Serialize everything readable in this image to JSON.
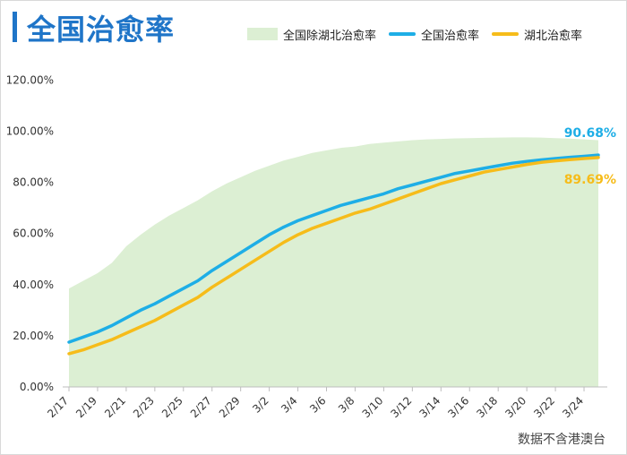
{
  "chart_data": {
    "type": "line",
    "title": "全国治愈率",
    "source": "数据不含港澳台",
    "categories": [
      "2/17",
      "2/18",
      "2/19",
      "2/20",
      "2/21",
      "2/22",
      "2/23",
      "2/24",
      "2/25",
      "2/26",
      "2/27",
      "2/28",
      "2/29",
      "3/1",
      "3/2",
      "3/3",
      "3/4",
      "3/5",
      "3/6",
      "3/7",
      "3/8",
      "3/9",
      "3/10",
      "3/11",
      "3/12",
      "3/13",
      "3/14",
      "3/15",
      "3/16",
      "3/17",
      "3/18",
      "3/19",
      "3/20",
      "3/21",
      "3/22",
      "3/23",
      "3/24",
      "3/25"
    ],
    "tick_labels": [
      "2/17",
      "2/19",
      "2/21",
      "2/23",
      "2/25",
      "2/27",
      "2/29",
      "3/2",
      "3/4",
      "3/6",
      "3/8",
      "3/10",
      "3/12",
      "3/14",
      "3/16",
      "3/18",
      "3/20",
      "3/22",
      "3/24"
    ],
    "y_ticks": [
      "0.00%",
      "20.00%",
      "40.00%",
      "60.00%",
      "80.00%",
      "100.00%",
      "120.00%"
    ],
    "ylim": [
      0,
      120
    ],
    "series": [
      {
        "name": "全国除湖北治愈率",
        "render": "area",
        "color": "#dcefd3",
        "values": [
          38.5,
          41.5,
          44.5,
          48.5,
          55.0,
          59.5,
          63.5,
          67.0,
          70.0,
          73.0,
          76.5,
          79.5,
          82.0,
          84.5,
          86.5,
          88.5,
          90.0,
          91.5,
          92.5,
          93.5,
          94.0,
          95.0,
          95.5,
          96.0,
          96.5,
          96.8,
          97.0,
          97.2,
          97.3,
          97.4,
          97.5,
          97.6,
          97.6,
          97.5,
          97.3,
          97.1,
          96.8,
          96.5
        ]
      },
      {
        "name": "全国治愈率",
        "render": "line",
        "color": "#1eaee6",
        "values": [
          17.5,
          19.5,
          21.5,
          24.0,
          27.0,
          30.0,
          32.5,
          35.5,
          38.5,
          41.5,
          45.5,
          49.0,
          52.5,
          56.0,
          59.5,
          62.5,
          65.0,
          67.0,
          69.0,
          71.0,
          72.5,
          74.0,
          75.5,
          77.5,
          79.0,
          80.5,
          82.0,
          83.5,
          84.5,
          85.5,
          86.5,
          87.5,
          88.2,
          88.8,
          89.3,
          89.8,
          90.2,
          90.68
        ]
      },
      {
        "name": "湖北治愈率",
        "render": "line",
        "color": "#f6bc1a",
        "values": [
          13.0,
          14.5,
          16.5,
          18.5,
          21.0,
          23.5,
          26.0,
          29.0,
          32.0,
          35.0,
          39.0,
          42.5,
          46.0,
          49.5,
          53.0,
          56.5,
          59.5,
          62.0,
          64.0,
          66.0,
          68.0,
          69.5,
          71.5,
          73.5,
          75.5,
          77.5,
          79.5,
          81.0,
          82.5,
          84.0,
          85.0,
          86.0,
          87.0,
          87.8,
          88.4,
          88.9,
          89.3,
          89.69
        ]
      }
    ],
    "annotations": [
      {
        "series": "全国治愈率",
        "text": "90.68%",
        "color": "#1eaee6"
      },
      {
        "series": "湖北治愈率",
        "text": "89.69%",
        "color": "#f6bc1a"
      }
    ]
  }
}
